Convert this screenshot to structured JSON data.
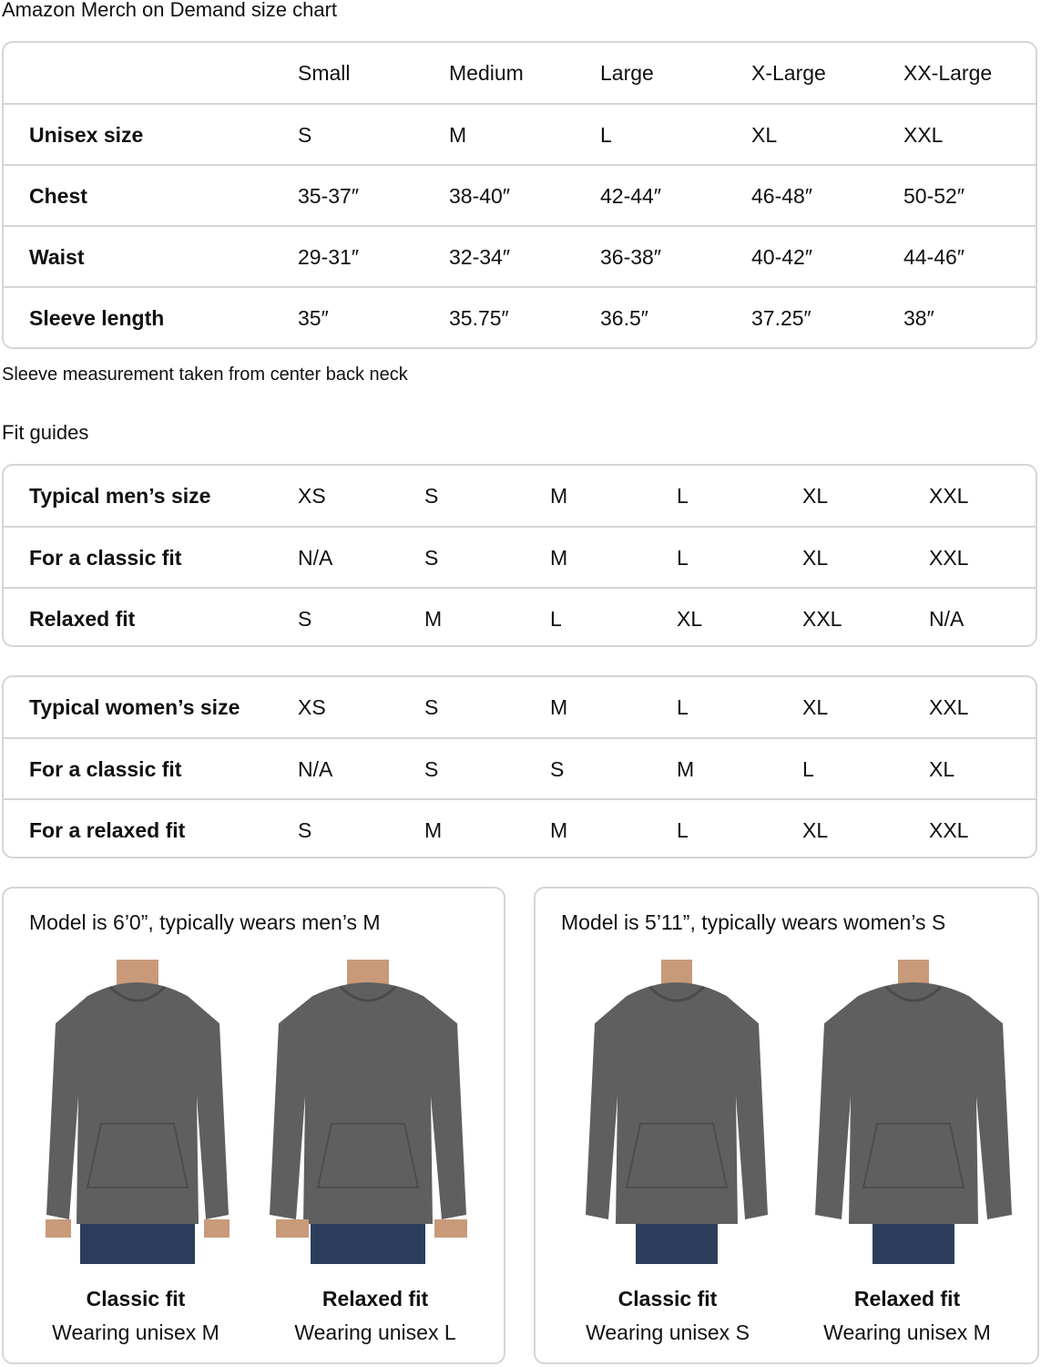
{
  "title": "Amazon Merch on Demand size chart",
  "size_chart": {
    "headers": [
      "",
      "Small",
      "Medium",
      "Large",
      "X-Large",
      "XX-Large"
    ],
    "rows": [
      {
        "label": "Unisex size",
        "values": [
          "S",
          "M",
          "L",
          "XL",
          "XXL"
        ]
      },
      {
        "label": "Chest",
        "values": [
          "35-37″",
          "38-40″",
          "42-44″",
          "46-48″",
          "50-52″"
        ]
      },
      {
        "label": "Waist",
        "values": [
          "29-31″",
          "32-34″",
          "36-38″",
          "40-42″",
          "44-46″"
        ]
      },
      {
        "label": "Sleeve length",
        "values": [
          "35″",
          "35.75″",
          "36.5″",
          "37.25″",
          "38″"
        ]
      }
    ]
  },
  "note": "Sleeve measurement taken from center back neck",
  "fit_guides_title": "Fit guides",
  "mens_fit": {
    "rows": [
      {
        "label": "Typical men’s size",
        "values": [
          "XS",
          "S",
          "M",
          "L",
          "XL",
          "XXL"
        ]
      },
      {
        "label": "For a classic fit",
        "values": [
          "N/A",
          "S",
          "M",
          "L",
          "XL",
          "XXL"
        ]
      },
      {
        "label": "Relaxed fit",
        "values": [
          "S",
          "M",
          "L",
          "XL",
          "XXL",
          "N/A"
        ]
      }
    ]
  },
  "womens_fit": {
    "rows": [
      {
        "label": "Typical women’s size",
        "values": [
          "XS",
          "S",
          "M",
          "L",
          "XL",
          "XXL"
        ]
      },
      {
        "label": "For a classic fit",
        "values": [
          "N/A",
          "S",
          "S",
          "M",
          "L",
          "XL"
        ]
      },
      {
        "label": "For a relaxed fit",
        "values": [
          "S",
          "M",
          "M",
          "L",
          "XL",
          "XXL"
        ]
      }
    ]
  },
  "models": [
    {
      "title": "Model is 6’0”, typically wears men’s M",
      "photos": [
        {
          "fit": "Classic fit",
          "wearing": "Wearing unisex M"
        },
        {
          "fit": "Relaxed fit",
          "wearing": "Wearing unisex L"
        }
      ]
    },
    {
      "title": "Model is 5’11”, typically wears women’s S",
      "photos": [
        {
          "fit": "Classic fit",
          "wearing": "Wearing unisex S"
        },
        {
          "fit": "Relaxed fit",
          "wearing": "Wearing unisex M"
        }
      ]
    }
  ],
  "colors": {
    "hoodie": "#5f5f5f",
    "jeans": "#2c3e5c",
    "border": "#d5d5d5"
  }
}
